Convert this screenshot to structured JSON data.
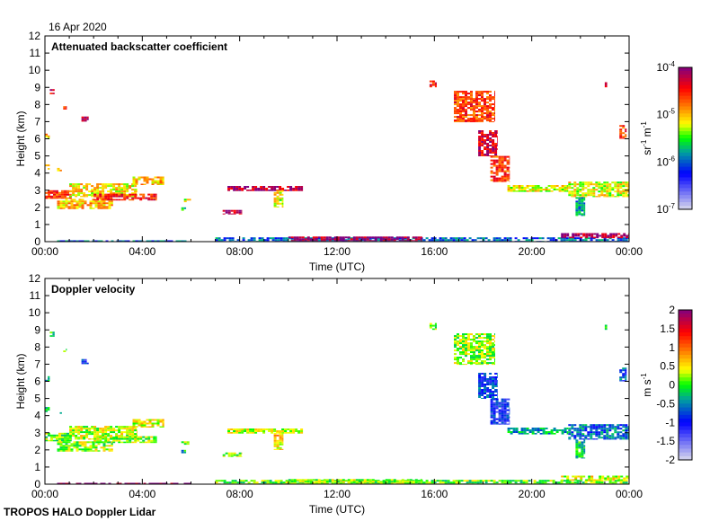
{
  "header": {
    "date": "16 Apr 2020"
  },
  "footer": {
    "instrument": "TROPOS HALO Doppler Lidar"
  },
  "chart_data": [
    {
      "type": "heatmap",
      "title": "Attenuated backscatter coefficient",
      "xlabel": "Time (UTC)",
      "ylabel": "Height (km)",
      "xlim_hours": [
        0,
        24
      ],
      "ylim": [
        0,
        12
      ],
      "xticks": [
        "00:00",
        "04:00",
        "08:00",
        "12:00",
        "16:00",
        "20:00",
        "00:00"
      ],
      "yticks": [
        "0",
        "1",
        "2",
        "3",
        "4",
        "5",
        "6",
        "7",
        "8",
        "9",
        "10",
        "11",
        "12"
      ],
      "colorbar": {
        "label_base": "sr",
        "label_exp1": "-1",
        "label_mid": " m",
        "label_exp2": "-1",
        "scale": "log",
        "range": [
          -7,
          -4
        ],
        "ticks": [
          {
            "base": "10",
            "exp": "-4"
          },
          {
            "base": "10",
            "exp": "-5"
          },
          {
            "base": "10",
            "exp": "-6"
          },
          {
            "base": "10",
            "exp": "-7"
          }
        ]
      },
      "value_key": "log_beta"
    },
    {
      "type": "heatmap",
      "title": "Doppler velocity",
      "xlabel": "Time (UTC)",
      "ylabel": "Height (km)",
      "xlim_hours": [
        0,
        24
      ],
      "ylim": [
        0,
        12
      ],
      "xticks": [
        "00:00",
        "04:00",
        "08:00",
        "12:00",
        "16:00",
        "20:00",
        "00:00"
      ],
      "yticks": [
        "0",
        "1",
        "2",
        "3",
        "4",
        "5",
        "6",
        "7",
        "8",
        "9",
        "10",
        "11",
        "12"
      ],
      "colorbar": {
        "label_base": "m s",
        "label_exp1": "-1",
        "label_mid": "",
        "label_exp2": "",
        "scale": "linear",
        "range": [
          -2,
          2
        ],
        "ticks": [
          "2",
          "1.5",
          "1",
          "0.5",
          "0",
          "-0.5",
          "-1",
          "-1.5",
          "-2"
        ]
      },
      "value_key": "vel"
    }
  ],
  "features": [
    {
      "t": [
        0.0,
        1.1
      ],
      "h": [
        2.5,
        3.0
      ],
      "log_beta": -4.6,
      "vel": 0.1
    },
    {
      "t": [
        0.5,
        2.8
      ],
      "h": [
        1.9,
        2.5
      ],
      "log_beta": -5.0,
      "vel": 0.2
    },
    {
      "t": [
        1.0,
        3.8
      ],
      "h": [
        2.6,
        3.4
      ],
      "log_beta": -5.1,
      "vel": 0.3
    },
    {
      "t": [
        2.0,
        4.6
      ],
      "h": [
        2.4,
        2.8
      ],
      "log_beta": -4.5,
      "vel": 0.2
    },
    {
      "t": [
        3.6,
        4.9
      ],
      "h": [
        3.3,
        3.8
      ],
      "log_beta": -5.0,
      "vel": 0.4
    },
    {
      "t": [
        5.6,
        6.0
      ],
      "h": [
        2.3,
        2.5
      ],
      "log_beta": -5.2,
      "vel": 0.1
    },
    {
      "t": [
        5.6,
        5.8
      ],
      "h": [
        1.8,
        2.0
      ],
      "log_beta": -5.5,
      "vel": -0.3
    },
    {
      "t": [
        7.5,
        10.6
      ],
      "h": [
        2.95,
        3.25
      ],
      "log_beta": -4.2,
      "vel": 0.3
    },
    {
      "t": [
        7.3,
        8.1
      ],
      "h": [
        1.6,
        1.85
      ],
      "log_beta": -4.2,
      "vel": 0.2
    },
    {
      "t": [
        9.4,
        9.8
      ],
      "h": [
        2.0,
        3.0
      ],
      "log_beta": -5.2,
      "vel": 0.6
    },
    {
      "t": [
        0.2,
        0.4
      ],
      "h": [
        8.6,
        8.9
      ],
      "log_beta": -4.3,
      "vel": 0.0
    },
    {
      "t": [
        0.75,
        0.9
      ],
      "h": [
        7.7,
        7.9
      ],
      "log_beta": -4.5,
      "vel": 0.0
    },
    {
      "t": [
        1.5,
        1.8
      ],
      "h": [
        7.0,
        7.3
      ],
      "log_beta": -4.2,
      "vel": -1.0
    },
    {
      "t": [
        0.0,
        0.2
      ],
      "h": [
        6.0,
        6.3
      ],
      "log_beta": -5.0,
      "vel": -0.3
    },
    {
      "t": [
        0.0,
        0.2
      ],
      "h": [
        4.2,
        4.5
      ],
      "log_beta": -5.0,
      "vel": 0.0
    },
    {
      "t": [
        0.5,
        0.7
      ],
      "h": [
        4.1,
        4.3
      ],
      "log_beta": -5.0,
      "vel": 0.0
    },
    {
      "t": [
        0.5,
        6.0
      ],
      "h": [
        0.0,
        0.08
      ],
      "log_beta": -6.0,
      "vel": 2.0
    },
    {
      "t": [
        7.0,
        24.0
      ],
      "h": [
        0.0,
        0.25
      ],
      "log_beta": -6.0,
      "vel": 0.1
    },
    {
      "t": [
        10.0,
        15.5
      ],
      "h": [
        0.05,
        0.3
      ],
      "log_beta": -4.1,
      "vel": 0.2
    },
    {
      "t": [
        15.8,
        16.1
      ],
      "h": [
        9.0,
        9.4
      ],
      "log_beta": -4.5,
      "vel": 0.2
    },
    {
      "t": [
        16.8,
        18.5
      ],
      "h": [
        7.0,
        8.8
      ],
      "log_beta": -4.6,
      "vel": 0.2
    },
    {
      "t": [
        17.8,
        18.6
      ],
      "h": [
        5.0,
        6.5
      ],
      "log_beta": -4.3,
      "vel": -0.8
    },
    {
      "t": [
        18.3,
        19.1
      ],
      "h": [
        3.5,
        5.0
      ],
      "log_beta": -4.6,
      "vel": -1.0
    },
    {
      "t": [
        19.0,
        21.5
      ],
      "h": [
        2.9,
        3.3
      ],
      "log_beta": -5.2,
      "vel": -0.4
    },
    {
      "t": [
        21.5,
        24.0
      ],
      "h": [
        2.6,
        3.5
      ],
      "log_beta": -5.2,
      "vel": -0.6
    },
    {
      "t": [
        21.2,
        24.0
      ],
      "h": [
        0.2,
        0.5
      ],
      "log_beta": -4.1,
      "vel": 0.4
    },
    {
      "t": [
        23.0,
        23.1
      ],
      "h": [
        9.0,
        9.3
      ],
      "log_beta": -4.2,
      "vel": 0.0
    },
    {
      "t": [
        23.6,
        23.9
      ],
      "h": [
        6.0,
        6.8
      ],
      "log_beta": -4.6,
      "vel": -0.7
    },
    {
      "t": [
        21.8,
        22.2
      ],
      "h": [
        1.5,
        2.6
      ],
      "log_beta": -5.8,
      "vel": -0.2
    }
  ]
}
